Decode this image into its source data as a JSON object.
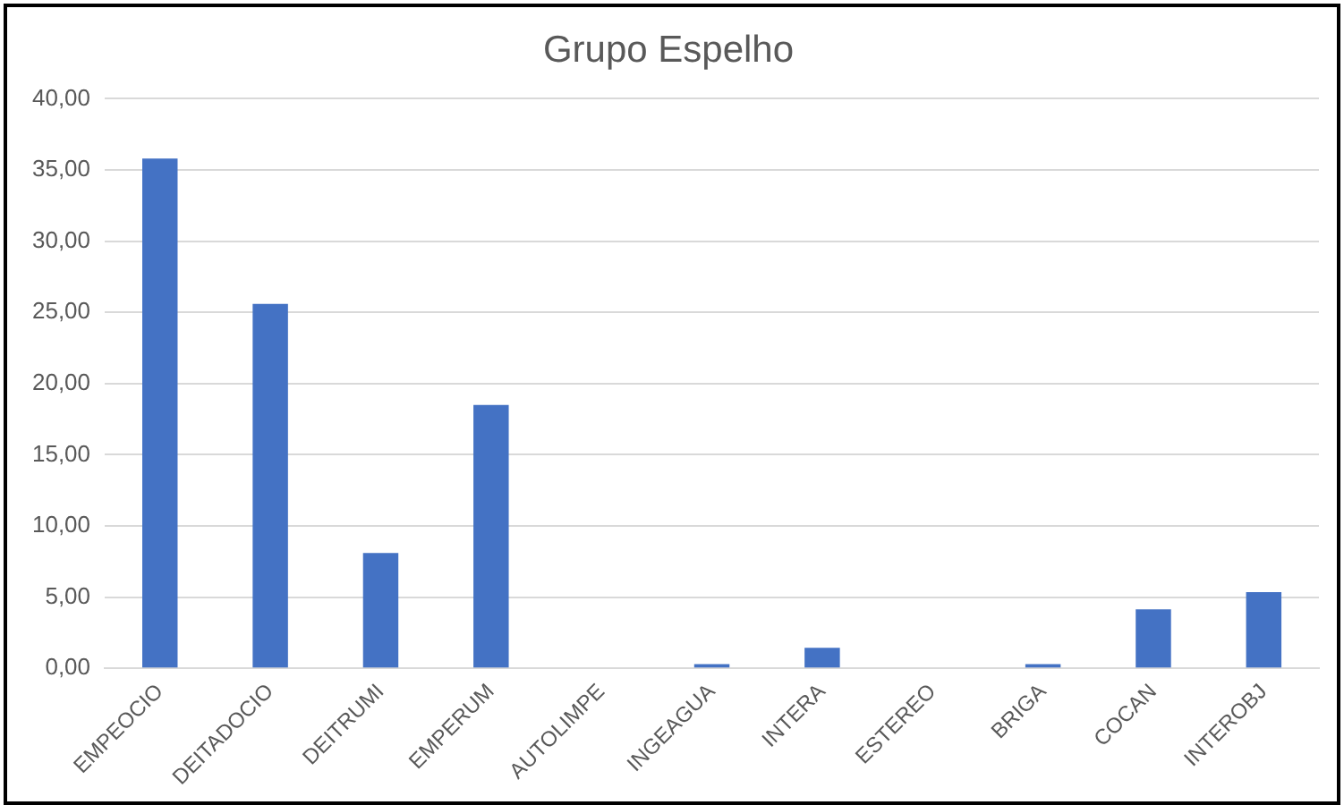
{
  "chart_data": {
    "type": "bar",
    "title": "Grupo Espelho",
    "categories": [
      "EMPEOCIO",
      "DEITADOCIO",
      "DEITRUMI",
      "EMPERUM",
      "AUTOLIMPE",
      "INGEAGUA",
      "INTERA",
      "ESTEREO",
      "BRIGA",
      "COCAN",
      "INTEROBJ"
    ],
    "values": [
      35.8,
      25.6,
      8.1,
      18.5,
      0,
      0.3,
      1.45,
      0,
      0.3,
      4.15,
      5.35
    ],
    "color": "#4472c4",
    "ylim": [
      0,
      40
    ],
    "yticks": [
      {
        "value": 0,
        "label": "0,00"
      },
      {
        "value": 5,
        "label": "5,00"
      },
      {
        "value": 10,
        "label": "10,00"
      },
      {
        "value": 15,
        "label": "15,00"
      },
      {
        "value": 20,
        "label": "20,00"
      },
      {
        "value": 25,
        "label": "25,00"
      },
      {
        "value": 30,
        "label": "30,00"
      },
      {
        "value": 35,
        "label": "35,00"
      },
      {
        "value": 40,
        "label": "40,00"
      }
    ],
    "grid": "y"
  }
}
